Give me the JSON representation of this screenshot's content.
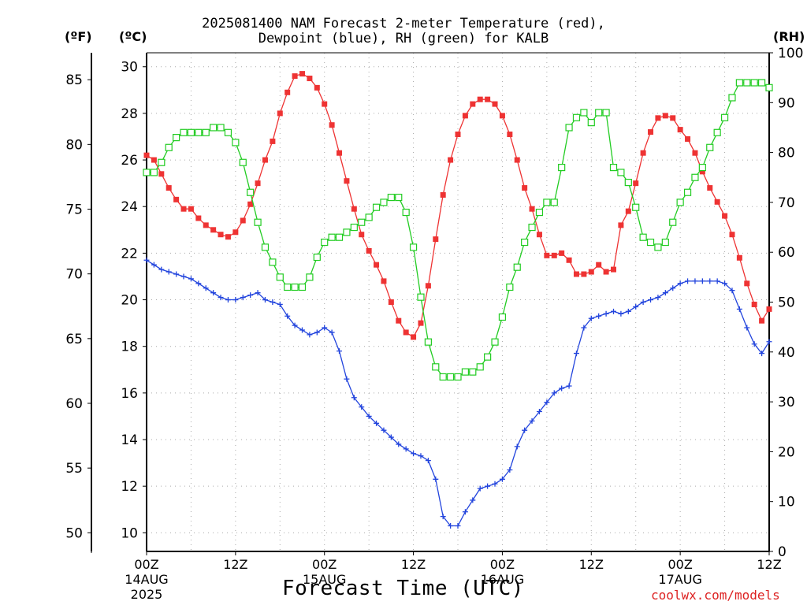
{
  "title": {
    "line1": "2025081400 NAM Forecast 2-meter Temperature (red),",
    "line2": "Dewpoint (blue), RH (green) for KALB"
  },
  "units": {
    "fahrenheit": "(ºF)",
    "celsius": "(ºC)",
    "rh": "(RH)"
  },
  "xlabel": "Forecast Time (UTC)",
  "credit": "coolwx.com/models",
  "colors": {
    "temperature": "#ee3333",
    "dewpoint": "#2244dd",
    "rh": "#22cc22",
    "grid": "#aaaaaa"
  },
  "chart_data": {
    "type": "line",
    "title": "2025081400 NAM Forecast 2-meter Temperature (red), Dewpoint (blue), RH (green) for KALB",
    "xlabel": "Forecast Time (UTC)",
    "ylabel": "(ºC)",
    "ylim": [
      9.2,
      30.6
    ],
    "y2label": "(RH)",
    "y2lim": [
      0,
      100
    ],
    "fahrenheit_ticks": [
      "50",
      "55",
      "60",
      "65",
      "70",
      "75",
      "80",
      "85"
    ],
    "celsius_ticks": [
      "10",
      "12",
      "14",
      "16",
      "18",
      "20",
      "22",
      "24",
      "26",
      "28",
      "30"
    ],
    "rh_ticks": [
      "0",
      "10",
      "20",
      "30",
      "40",
      "50",
      "60",
      "70",
      "80",
      "90",
      "100"
    ],
    "xlim": [
      0,
      84
    ],
    "x_ticks": [
      {
        "x": 0,
        "line1": "00Z",
        "line2": "14AUG",
        "line3": "2025"
      },
      {
        "x": 12,
        "line1": "12Z",
        "line2": "",
        "line3": ""
      },
      {
        "x": 24,
        "line1": "00Z",
        "line2": "15AUG",
        "line3": ""
      },
      {
        "x": 36,
        "line1": "12Z",
        "line2": "",
        "line3": ""
      },
      {
        "x": 48,
        "line1": "00Z",
        "line2": "16AUG",
        "line3": ""
      },
      {
        "x": 60,
        "line1": "12Z",
        "line2": "",
        "line3": ""
      },
      {
        "x": 72,
        "line1": "00Z",
        "line2": "17AUG",
        "line3": ""
      },
      {
        "x": 84,
        "line1": "12Z",
        "line2": "",
        "line3": ""
      }
    ],
    "grid": true,
    "series": [
      {
        "name": "Temperature (red)",
        "axis": "celsius",
        "color": "#ee3333",
        "marker": "filled-square",
        "x": [
          0,
          1,
          2,
          3,
          4,
          5,
          6,
          7,
          8,
          9,
          10,
          11,
          12,
          13,
          14,
          15,
          16,
          17,
          18,
          19,
          20,
          21,
          22,
          23,
          24,
          25,
          26,
          27,
          28,
          29,
          30,
          31,
          32,
          33,
          34,
          35,
          36,
          37,
          38,
          39,
          40,
          41,
          42,
          43,
          44,
          45,
          46,
          47,
          48,
          49,
          50,
          51,
          52,
          53,
          54,
          55,
          56,
          57,
          58,
          59,
          60,
          61,
          62,
          63,
          64,
          65,
          66,
          67,
          68,
          69,
          70,
          71,
          72,
          73,
          74,
          75,
          76,
          77,
          78,
          79,
          80,
          81,
          82,
          83,
          84
        ],
        "y": [
          26.2,
          26.0,
          25.4,
          24.8,
          24.3,
          23.9,
          23.9,
          23.5,
          23.2,
          23.0,
          22.8,
          22.7,
          22.9,
          23.4,
          24.1,
          25.0,
          26.0,
          26.8,
          28.0,
          28.9,
          29.6,
          29.7,
          29.5,
          29.1,
          28.4,
          27.5,
          26.3,
          25.1,
          23.9,
          22.8,
          22.1,
          21.5,
          20.8,
          19.9,
          19.1,
          18.6,
          18.4,
          19.0,
          20.6,
          22.6,
          24.5,
          26.0,
          27.1,
          27.9,
          28.4,
          28.6,
          28.6,
          28.4,
          27.9,
          27.1,
          26.0,
          24.8,
          23.9,
          22.8,
          21.9,
          21.9,
          22.0,
          21.7,
          21.1,
          21.1,
          21.2,
          21.5,
          21.2,
          21.3,
          23.2,
          23.8,
          25.0,
          26.3,
          27.2,
          27.8,
          27.9,
          27.8,
          27.3,
          26.9,
          26.3,
          25.5,
          24.8,
          24.2,
          23.6,
          22.8,
          21.8,
          20.7,
          19.8,
          19.1,
          19.6
        ]
      },
      {
        "name": "Dewpoint (blue)",
        "axis": "celsius",
        "color": "#2244dd",
        "marker": "plus",
        "x": [
          0,
          1,
          2,
          3,
          4,
          5,
          6,
          7,
          8,
          9,
          10,
          11,
          12,
          13,
          14,
          15,
          16,
          17,
          18,
          19,
          20,
          21,
          22,
          23,
          24,
          25,
          26,
          27,
          28,
          29,
          30,
          31,
          32,
          33,
          34,
          35,
          36,
          37,
          38,
          39,
          40,
          41,
          42,
          43,
          44,
          45,
          46,
          47,
          48,
          49,
          50,
          51,
          52,
          53,
          54,
          55,
          56,
          57,
          58,
          59,
          60,
          61,
          62,
          63,
          64,
          65,
          66,
          67,
          68,
          69,
          70,
          71,
          72,
          73,
          74,
          75,
          76,
          77,
          78,
          79,
          80,
          81,
          82,
          83,
          84
        ],
        "y": [
          21.7,
          21.5,
          21.3,
          21.2,
          21.1,
          21.0,
          20.9,
          20.7,
          20.5,
          20.3,
          20.1,
          20.0,
          20.0,
          20.1,
          20.2,
          20.3,
          20.0,
          19.9,
          19.8,
          19.3,
          18.9,
          18.7,
          18.5,
          18.6,
          18.8,
          18.6,
          17.8,
          16.6,
          15.8,
          15.4,
          15.0,
          14.7,
          14.4,
          14.1,
          13.8,
          13.6,
          13.4,
          13.3,
          13.1,
          12.3,
          10.7,
          10.3,
          10.3,
          10.9,
          11.4,
          11.9,
          12.0,
          12.1,
          12.3,
          12.7,
          13.7,
          14.4,
          14.8,
          15.2,
          15.6,
          16.0,
          16.2,
          16.3,
          17.7,
          18.8,
          19.2,
          19.3,
          19.4,
          19.5,
          19.4,
          19.5,
          19.7,
          19.9,
          20.0,
          20.1,
          20.3,
          20.5,
          20.7,
          20.8,
          20.8,
          20.8,
          20.8,
          20.8,
          20.7,
          20.4,
          19.6,
          18.8,
          18.1,
          17.7,
          18.2
        ]
      },
      {
        "name": "RH (green)",
        "axis": "rh",
        "color": "#22cc22",
        "marker": "open-square",
        "x": [
          0,
          1,
          2,
          3,
          4,
          5,
          6,
          7,
          8,
          9,
          10,
          11,
          12,
          13,
          14,
          15,
          16,
          17,
          18,
          19,
          20,
          21,
          22,
          23,
          24,
          25,
          26,
          27,
          28,
          29,
          30,
          31,
          32,
          33,
          34,
          35,
          36,
          37,
          38,
          39,
          40,
          41,
          42,
          43,
          44,
          45,
          46,
          47,
          48,
          49,
          50,
          51,
          52,
          53,
          54,
          55,
          56,
          57,
          58,
          59,
          60,
          61,
          62,
          63,
          64,
          65,
          66,
          67,
          68,
          69,
          70,
          71,
          72,
          73,
          74,
          75,
          76,
          77,
          78,
          79,
          80,
          81,
          82,
          83,
          84
        ],
        "y": [
          76,
          76,
          78,
          81,
          83,
          84,
          84,
          84,
          84,
          85,
          85,
          84,
          82,
          78,
          72,
          66,
          61,
          58,
          55,
          53,
          53,
          53,
          55,
          59,
          62,
          63,
          63,
          64,
          65,
          66,
          67,
          69,
          70,
          71,
          71,
          68,
          61,
          51,
          42,
          37,
          35,
          35,
          35,
          36,
          36,
          37,
          39,
          42,
          47,
          53,
          57,
          62,
          65,
          68,
          70,
          70,
          77,
          85,
          87,
          88,
          86,
          88,
          88,
          77,
          76,
          74,
          69,
          63,
          62,
          61,
          62,
          66,
          70,
          72,
          75,
          77,
          81,
          84,
          87,
          91,
          94,
          94,
          94,
          94,
          93
        ]
      }
    ]
  }
}
